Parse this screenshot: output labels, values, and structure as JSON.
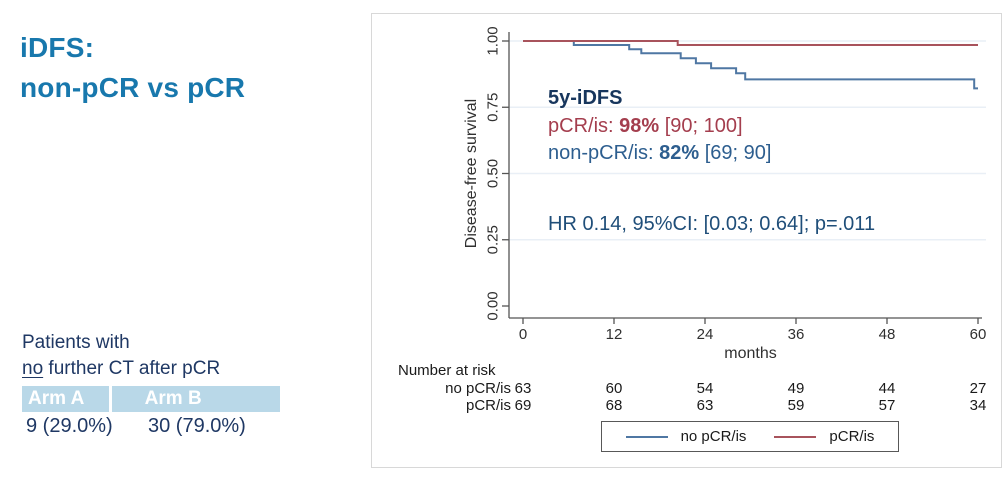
{
  "left_panel": {
    "title": {
      "line1": "iDFS:",
      "line2": "non-pCR vs pCR"
    },
    "note": {
      "line1": "Patients with",
      "underlined": "no",
      "line2_rest": " further CT after pCR"
    },
    "arm_table": {
      "headers": [
        "Arm A",
        "Arm B"
      ],
      "values": [
        "9 (29.0%)",
        "30 (79.0%)"
      ]
    }
  },
  "chart_data": {
    "type": "line",
    "style": "kaplan-meier-step",
    "title": "",
    "xlabel": "months",
    "ylabel": "Disease-free survival",
    "xlim": [
      0,
      60
    ],
    "ylim": [
      0,
      1
    ],
    "xticks": [
      0,
      12,
      24,
      36,
      48,
      60
    ],
    "yticks": [
      {
        "v": 0.0,
        "label": "0.00"
      },
      {
        "v": 0.25,
        "label": "0.25"
      },
      {
        "v": 0.5,
        "label": "0.50"
      },
      {
        "v": 0.75,
        "label": "0.75"
      },
      {
        "v": 1.0,
        "label": "1.00"
      }
    ],
    "gridlines_at": [
      0.25,
      0.5,
      0.75,
      1.0
    ],
    "legend_position": "bottom",
    "series": [
      {
        "name": "no pCR/is",
        "color": "#4f77a3",
        "points": [
          [
            0,
            1.0
          ],
          [
            6.7,
            0.985
          ],
          [
            14.0,
            0.969
          ],
          [
            15.6,
            0.954
          ],
          [
            20.8,
            0.935
          ],
          [
            22.8,
            0.916
          ],
          [
            24.8,
            0.897
          ],
          [
            28.1,
            0.878
          ],
          [
            29.3,
            0.855
          ],
          [
            59.5,
            0.821
          ]
        ]
      },
      {
        "name": "pCR/is",
        "color": "#a8535c",
        "points": [
          [
            0,
            1.0
          ],
          [
            20.4,
            0.985
          ]
        ]
      }
    ],
    "annotations": {
      "heading": "5y-iDFS",
      "heading_color": "#17365d",
      "pcr": {
        "prefix": "pCR/is: ",
        "bold": "98%",
        "suffix": " [90; 100]",
        "color": "#a43e4e"
      },
      "non_pcr": {
        "prefix": "non-pCR/is: ",
        "bold": "82%",
        "suffix": " [69; 90]",
        "color": "#2d5e8f"
      },
      "hr": "HR 0.14, 95%CI: [0.03; 0.64]; p=.011",
      "hr_color": "#1f4e79"
    },
    "number_at_risk": {
      "heading": "Number at risk",
      "rows": [
        {
          "label": "no pCR/is",
          "values": [
            63,
            60,
            54,
            49,
            44,
            27
          ]
        },
        {
          "label": "pCR/is",
          "values": [
            69,
            68,
            63,
            59,
            57,
            34
          ]
        }
      ]
    }
  },
  "colors": {
    "title_blue": "#1878ad",
    "navy": "#1f3864",
    "table_header_bg": "#b9d8e8",
    "grid": "#e9eff6",
    "axis": "#555555",
    "panel_border": "#d8d8d8"
  }
}
